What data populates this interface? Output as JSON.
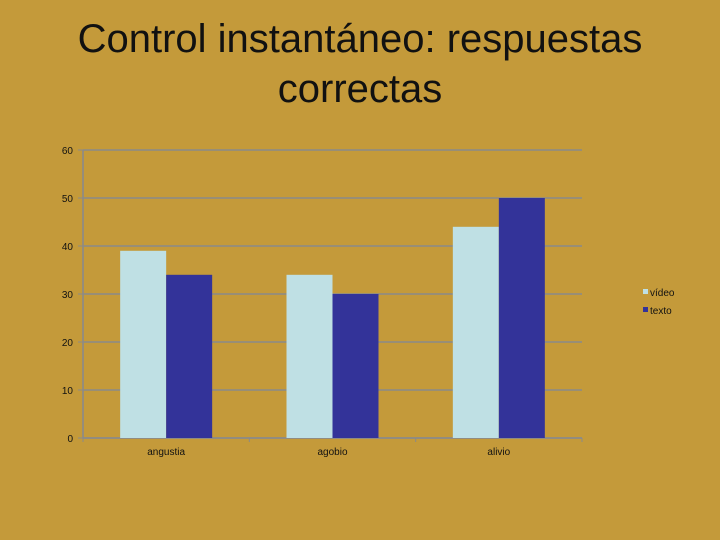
{
  "slide": {
    "title": "Control instantáneo: respuestas correctas"
  },
  "colors": {
    "background": "#C49A3A",
    "gridline": "#8A8A8A",
    "axis": "#8A8A8A"
  },
  "chart_data": {
    "type": "bar",
    "title": "",
    "xlabel": "",
    "ylabel": "",
    "categories": [
      "angustia",
      "agobio",
      "alivio"
    ],
    "series": [
      {
        "name": "vídeo",
        "values": [
          39,
          34,
          44
        ],
        "color": "#BFE0E4"
      },
      {
        "name": "texto",
        "values": [
          34,
          30,
          50
        ],
        "color": "#333399"
      }
    ],
    "ylim": [
      0,
      60
    ],
    "yticks": [
      0,
      10,
      20,
      30,
      40,
      50,
      60
    ],
    "grid": true,
    "legend": "right"
  }
}
